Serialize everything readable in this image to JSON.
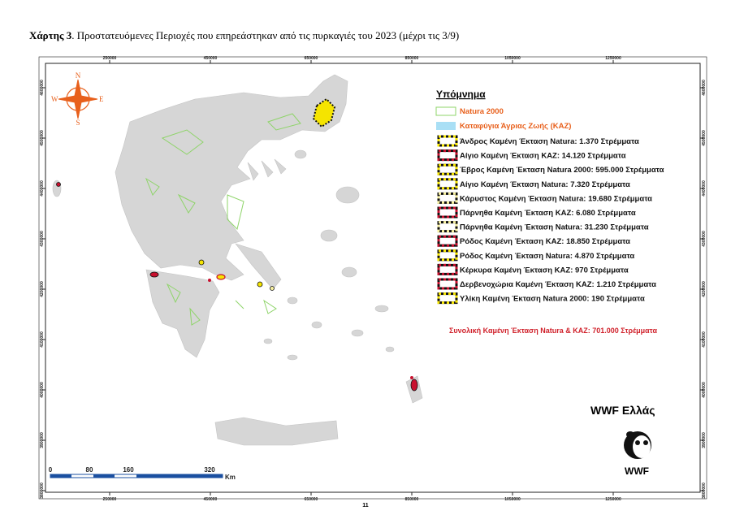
{
  "caption": {
    "label": "Χάρτης 3",
    "text": ". Προστατευόμενες Περιοχές που επηρεάστηκαν από τις πυρκαγιές του 2023 (μέχρι τις 3/9)"
  },
  "map": {
    "xticks": [
      250000,
      450000,
      650000,
      850000,
      1050000,
      1250000
    ],
    "yticks": [
      4600000,
      4500000,
      4400000,
      4300000,
      4200000,
      4100000,
      4000000,
      3900000,
      3800000
    ],
    "compass": {
      "n": "N",
      "e": "E",
      "s": "S",
      "w": "W"
    },
    "scale": {
      "labels": [
        "0",
        "80",
        "160",
        "320"
      ],
      "unit": "Km"
    }
  },
  "legend": {
    "title": "Υπόμνημα",
    "natura": "Natura 2000",
    "kaz": "Καταφύγια Άγριας Ζωής (ΚΑΖ)",
    "items": [
      {
        "name": "Άνδρος Καμένη Έκταση Natura: 1.370 Στρέμματα",
        "color": "#f5e400"
      },
      {
        "name": "Αίγιο Καμένη Έκταση ΚΑΖ: 14.120 Στρέμματα",
        "color": "#c8102e"
      },
      {
        "name": "Έβρος Καμένη Έκταση Natura 2000: 595.000 Στρέμματα",
        "color": "#f5e400"
      },
      {
        "name": "Αίγιο Καμένη Έκταση Natura: 7.320 Στρέμματα",
        "color": "#f5e400"
      },
      {
        "name": "Κάρυστος Καμένη Έκταση Natura: 19.680 Στρέμματα",
        "color": "#f7f0a0"
      },
      {
        "name": "Πάρνηθα Καμένη Έκταση ΚΑΖ: 6.080 Στρέμματα",
        "color": "#c8102e"
      },
      {
        "name": "Πάρνηθα Καμένη Έκταση Natura: 31.230 Στρέμματα",
        "color": "#f7f0a0"
      },
      {
        "name": "Ρόδος Καμένη Έκταση ΚΑΖ: 18.850 Στρέμματα",
        "color": "#c8102e"
      },
      {
        "name": "Ρόδος Καμένη Έκταση Natura: 4.870 Στρέμματα",
        "color": "#f5e400"
      },
      {
        "name": "Κέρκυρα Καμένη Έκταση ΚΑΖ: 970 Στρέμματα",
        "color": "#c8102e"
      },
      {
        "name": "Δερβενοχώρια Καμένη Έκταση ΚΑΖ: 1.210 Στρέμματα",
        "color": "#c8102e"
      },
      {
        "name": "Υλίκη Καμένη Έκταση Natura 2000: 190 Στρέμματα",
        "color": "#f5e400"
      }
    ],
    "total": "Συνολική Καμένη Έκταση Natura & ΚΑΖ: 701.000 Στρέμματα"
  },
  "brand": {
    "name": "WWF Ελλάς",
    "logo": "WWF"
  },
  "page_number": "11"
}
